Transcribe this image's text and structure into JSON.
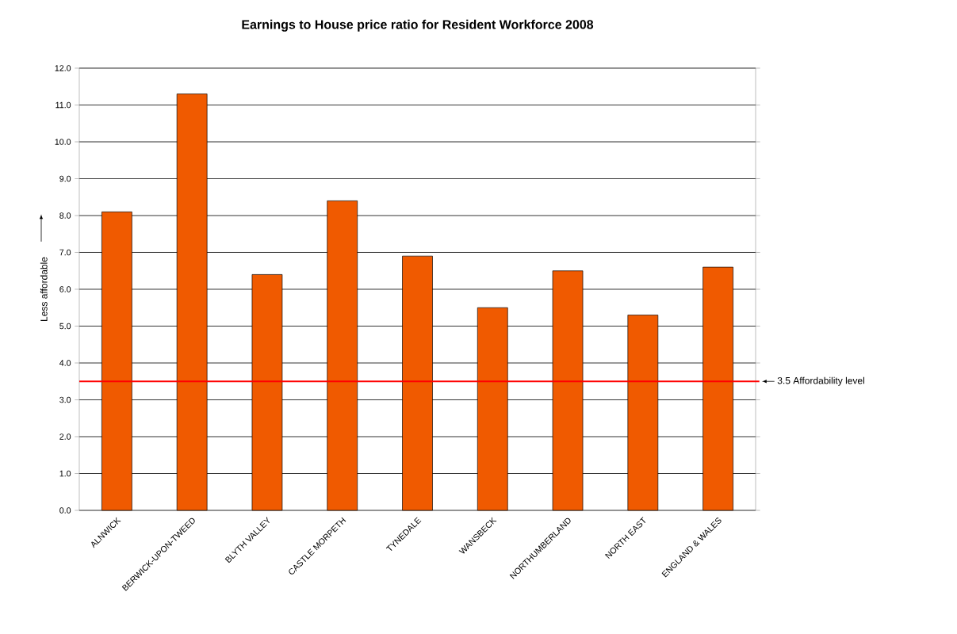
{
  "chart_data": {
    "type": "bar",
    "title": "Earnings to House price ratio for Resident Workforce 2008",
    "ylabel": "Less affordable",
    "categories": [
      "ALNWICK",
      "BERWICK-UPON-TWEED",
      "BLYTH VALLEY",
      "CASTLE MORPETH",
      "TYNEDALE",
      "WANSBECK",
      "NORTHUMBERLAND",
      "NORTH EAST",
      "ENGLAND & WALES"
    ],
    "values": [
      8.1,
      11.3,
      6.4,
      8.4,
      6.9,
      5.5,
      6.5,
      5.3,
      6.6
    ],
    "color": "#f05a00",
    "ylim": [
      0,
      12
    ],
    "yticks": [
      {
        "value": 0,
        "label": "0.0"
      },
      {
        "value": 1,
        "label": "1.0"
      },
      {
        "value": 2,
        "label": "2.0"
      },
      {
        "value": 3,
        "label": "3.0"
      },
      {
        "value": 4,
        "label": "4.0"
      },
      {
        "value": 5,
        "label": "5.0"
      },
      {
        "value": 6,
        "label": "6.0"
      },
      {
        "value": 7,
        "label": "7.0"
      },
      {
        "value": 8,
        "label": "8.0"
      },
      {
        "value": 9,
        "label": "9.0"
      },
      {
        "value": 10,
        "label": "10.0"
      },
      {
        "value": 11,
        "label": "11.0"
      },
      {
        "value": 12,
        "label": "12.0"
      }
    ],
    "grid": "y",
    "ref_lines": [
      {
        "axis": "y",
        "value": 3.5,
        "label": "3.5 Affordability level",
        "color": "#ff0000"
      }
    ]
  }
}
